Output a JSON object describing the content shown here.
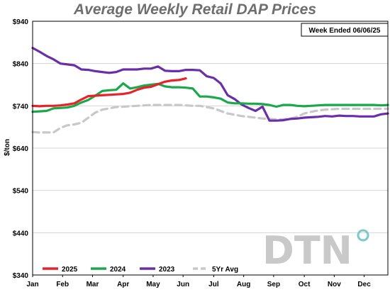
{
  "chart_data": {
    "type": "line",
    "title": "Average Weekly Retail DAP Prices",
    "ylabel": "$/ton",
    "note": "Week Ended 06/06/25",
    "logo": "DTN",
    "ylim": [
      340,
      940
    ],
    "y_ticks": [
      "$940",
      "$840",
      "$740",
      "$640",
      "$540",
      "$440",
      "$340"
    ],
    "y_tick_values": [
      940,
      840,
      740,
      640,
      540,
      440,
      340
    ],
    "x_range": [
      1,
      52
    ],
    "month_labels": [
      "Jan",
      "Feb",
      "Mar",
      "Apr",
      "May",
      "Jun",
      "Jul",
      "Aug",
      "Sep",
      "Oct",
      "Nov",
      "Dec"
    ],
    "month_weeks": [
      1,
      5.3,
      9.6,
      14,
      18.3,
      22.6,
      27,
      31.3,
      35.6,
      40,
      44.3,
      48.6
    ],
    "grid": "horizontal",
    "legend_position": "bottom",
    "series": [
      {
        "name": "2025",
        "color": "#e8212a",
        "x": [
          1,
          2,
          3,
          4,
          5,
          6,
          7,
          8,
          9,
          10,
          11,
          12,
          13,
          14,
          15,
          16,
          17,
          18,
          19,
          20,
          21,
          22,
          23
        ],
        "values": [
          740,
          739,
          740,
          740,
          741,
          743,
          746,
          755,
          763,
          764,
          765,
          766,
          767,
          768,
          771,
          778,
          783,
          785,
          791,
          797,
          800,
          801,
          805
        ]
      },
      {
        "name": "2024",
        "color": "#1aa84a",
        "x": [
          1,
          2,
          3,
          4,
          5,
          6,
          7,
          8,
          9,
          10,
          11,
          12,
          13,
          14,
          15,
          16,
          17,
          18,
          19,
          20,
          21,
          22,
          23,
          24,
          25,
          26,
          27,
          28,
          29,
          30,
          31,
          32,
          33,
          34,
          35,
          36,
          37,
          38,
          39,
          40,
          41,
          42,
          43,
          44,
          45,
          46,
          47,
          48,
          49,
          50,
          51,
          52
        ],
        "values": [
          726,
          727,
          728,
          734,
          735,
          736,
          740,
          748,
          754,
          764,
          775,
          777,
          778,
          793,
          781,
          784,
          788,
          790,
          792,
          786,
          784,
          784,
          783,
          781,
          762,
          762,
          760,
          757,
          748,
          746,
          746,
          745,
          745,
          744,
          742,
          738,
          742,
          742,
          740,
          739,
          740,
          741,
          742,
          742,
          742,
          742,
          742,
          742,
          742,
          742,
          741,
          742
        ]
      },
      {
        "name": "2023",
        "color": "#6a2fa8",
        "x": [
          1,
          2,
          3,
          4,
          5,
          6,
          7,
          8,
          9,
          10,
          11,
          12,
          13,
          14,
          15,
          16,
          17,
          18,
          19,
          20,
          21,
          22,
          23,
          24,
          25,
          26,
          27,
          28,
          29,
          30,
          31,
          32,
          33,
          34,
          35,
          36,
          37,
          38,
          39,
          40,
          41,
          42,
          43,
          44,
          45,
          46,
          47,
          48,
          49,
          50,
          51,
          52
        ],
        "values": [
          877,
          868,
          858,
          850,
          840,
          838,
          836,
          826,
          825,
          822,
          820,
          818,
          820,
          826,
          826,
          826,
          828,
          828,
          833,
          823,
          822,
          822,
          825,
          825,
          824,
          810,
          806,
          793,
          765,
          756,
          743,
          735,
          728,
          738,
          705,
          705,
          706,
          709,
          710,
          712,
          713,
          714,
          716,
          715,
          717,
          716,
          716,
          715,
          715,
          715,
          720,
          722
        ]
      },
      {
        "name": "5Yr Avg",
        "color": "#c8c8c8",
        "dashed": true,
        "x": [
          1,
          2,
          3,
          4,
          5,
          6,
          7,
          8,
          9,
          10,
          11,
          12,
          13,
          14,
          15,
          16,
          17,
          18,
          19,
          20,
          21,
          22,
          23,
          24,
          25,
          26,
          27,
          28,
          29,
          30,
          31,
          32,
          33,
          34,
          35,
          36,
          37,
          38,
          39,
          40,
          41,
          42,
          43,
          44,
          45,
          46,
          47,
          48,
          49,
          50,
          51,
          52
        ],
        "values": [
          678,
          677,
          677,
          677,
          688,
          694,
          696,
          700,
          712,
          724,
          731,
          734,
          737,
          738,
          739,
          740,
          741,
          742,
          742,
          742,
          742,
          742,
          741,
          740,
          740,
          737,
          734,
          728,
          722,
          719,
          716,
          714,
          712,
          710,
          709,
          708,
          708,
          710,
          714,
          722,
          726,
          729,
          731,
          732,
          733,
          733,
          733,
          733,
          733,
          733,
          733,
          733
        ]
      }
    ]
  }
}
